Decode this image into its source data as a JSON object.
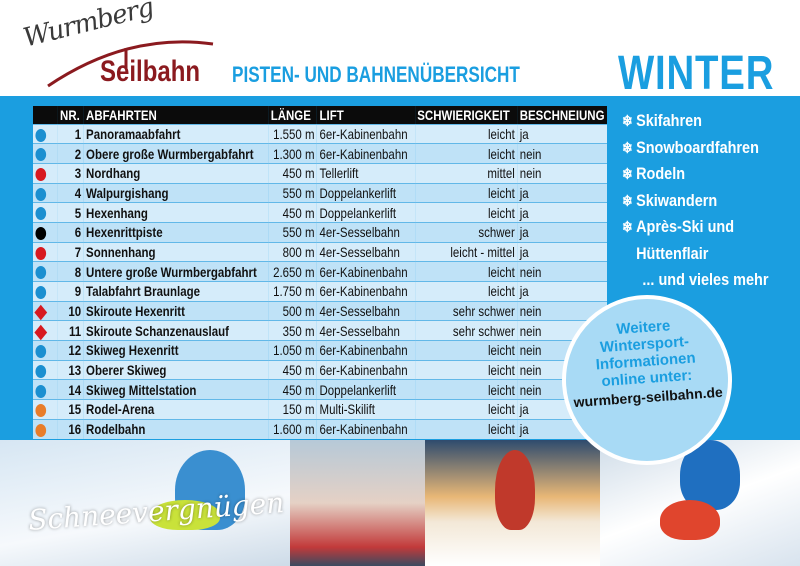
{
  "logo": {
    "line1": "Wurmberg",
    "line2": "Seilbahn"
  },
  "header": {
    "subtitle": "PISTEN- UND BAHNENÜBERSICHT",
    "season": "WINTER"
  },
  "table": {
    "columns": [
      "NR.",
      "ABFAHRTEN",
      "LÄNGE",
      "LIFT",
      "SCHWIERIGKEIT",
      "BESCHNEIUNG"
    ],
    "rows": [
      {
        "marker": "circle",
        "color": "#1b8fd0",
        "nr": "1",
        "name": "Panoramaabfahrt",
        "length": "1.550 m",
        "lift": "6er-Kabinenbahn",
        "difficulty": "leicht",
        "snow": "ja"
      },
      {
        "marker": "circle",
        "color": "#1b8fd0",
        "nr": "2",
        "name": "Obere große Wurmbergabfahrt",
        "length": "1.300 m",
        "lift": "6er-Kabinenbahn",
        "difficulty": "leicht",
        "snow": "nein"
      },
      {
        "marker": "circle",
        "color": "#d71920",
        "nr": "3",
        "name": "Nordhang",
        "length": "450 m",
        "lift": "Tellerlift",
        "difficulty": "mittel",
        "snow": "nein"
      },
      {
        "marker": "circle",
        "color": "#1b8fd0",
        "nr": "4",
        "name": "Walpurgishang",
        "length": "550 m",
        "lift": "Doppelankerlift",
        "difficulty": "leicht",
        "snow": "ja"
      },
      {
        "marker": "circle",
        "color": "#1b8fd0",
        "nr": "5",
        "name": "Hexenhang",
        "length": "450 m",
        "lift": "Doppelankerlift",
        "difficulty": "leicht",
        "snow": "ja"
      },
      {
        "marker": "circle",
        "color": "#000000",
        "nr": "6",
        "name": "Hexenrittpiste",
        "length": "550 m",
        "lift": "4er-Sesselbahn",
        "difficulty": "schwer",
        "snow": "ja"
      },
      {
        "marker": "circle",
        "color": "#d71920",
        "nr": "7",
        "name": "Sonnenhang",
        "length": "800 m",
        "lift": "4er-Sesselbahn",
        "difficulty": "leicht - mittel",
        "snow": "ja"
      },
      {
        "marker": "circle",
        "color": "#1b8fd0",
        "nr": "8",
        "name": "Untere große Wurmbergabfahrt",
        "length": "2.650 m",
        "lift": "6er-Kabinenbahn",
        "difficulty": "leicht",
        "snow": "nein"
      },
      {
        "marker": "circle",
        "color": "#1b8fd0",
        "nr": "9",
        "name": "Talabfahrt Braunlage",
        "length": "1.750 m",
        "lift": "6er-Kabinenbahn",
        "difficulty": "leicht",
        "snow": "ja"
      },
      {
        "marker": "diamond",
        "color": "#d71920",
        "nr": "10",
        "name": "Skiroute Hexenritt",
        "length": "500 m",
        "lift": "4er-Sesselbahn",
        "difficulty": "sehr schwer",
        "snow": "nein"
      },
      {
        "marker": "diamond",
        "color": "#d71920",
        "nr": "11",
        "name": "Skiroute Schanzenauslauf",
        "length": "350 m",
        "lift": "4er-Sesselbahn",
        "difficulty": "sehr schwer",
        "snow": "nein"
      },
      {
        "marker": "circle",
        "color": "#1b8fd0",
        "nr": "12",
        "name": "Skiweg Hexenritt",
        "length": "1.050 m",
        "lift": "6er-Kabinenbahn",
        "difficulty": "leicht",
        "snow": "nein"
      },
      {
        "marker": "circle",
        "color": "#1b8fd0",
        "nr": "13",
        "name": "Oberer Skiweg",
        "length": "450 m",
        "lift": "6er-Kabinenbahn",
        "difficulty": "leicht",
        "snow": "nein"
      },
      {
        "marker": "circle",
        "color": "#1b8fd0",
        "nr": "14",
        "name": "Skiweg Mittelstation",
        "length": "450 m",
        "lift": "Doppelankerlift",
        "difficulty": "leicht",
        "snow": "nein"
      },
      {
        "marker": "circle",
        "color": "#e87d2a",
        "nr": "15",
        "name": "Rodel-Arena",
        "length": "150 m",
        "lift": "Multi-Skilift",
        "difficulty": "leicht",
        "snow": "ja"
      },
      {
        "marker": "circle",
        "color": "#e87d2a",
        "nr": "16",
        "name": "Rodelbahn",
        "length": "1.600 m",
        "lift": "6er-Kabinenbahn",
        "difficulty": "leicht",
        "snow": "ja"
      }
    ]
  },
  "activities": {
    "icon": "snowflake-icon",
    "items": [
      "Skifahren",
      "Snowboardfahren",
      "Rodeln",
      "Skiwandern",
      "Après-Ski und",
      "Hüttenflair"
    ],
    "more": "... und vieles mehr"
  },
  "badge": {
    "lines": [
      "Weitere",
      "Wintersport-",
      "Informationen",
      "online unter:"
    ],
    "url": "wurmberg-seilbahn.de"
  },
  "footer": {
    "script": "Schneevergnügen"
  },
  "colors": {
    "blue": "#1b9ee0",
    "logo_red": "#8b1a1f"
  }
}
